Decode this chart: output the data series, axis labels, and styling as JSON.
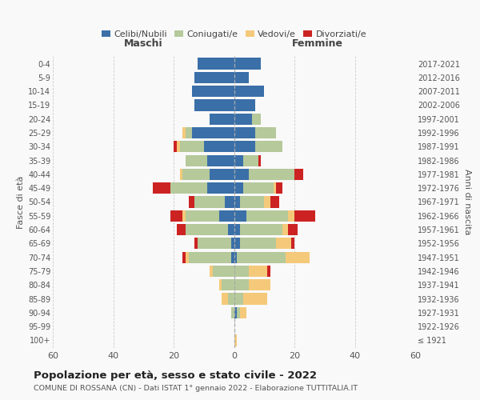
{
  "age_groups": [
    "100+",
    "95-99",
    "90-94",
    "85-89",
    "80-84",
    "75-79",
    "70-74",
    "65-69",
    "60-64",
    "55-59",
    "50-54",
    "45-49",
    "40-44",
    "35-39",
    "30-34",
    "25-29",
    "20-24",
    "15-19",
    "10-14",
    "5-9",
    "0-4"
  ],
  "birth_years": [
    "≤ 1921",
    "1922-1926",
    "1927-1931",
    "1932-1936",
    "1937-1941",
    "1942-1946",
    "1947-1951",
    "1952-1956",
    "1957-1961",
    "1962-1966",
    "1967-1971",
    "1972-1976",
    "1977-1981",
    "1982-1986",
    "1987-1991",
    "1992-1996",
    "1997-2001",
    "2002-2006",
    "2007-2011",
    "2012-2016",
    "2017-2021"
  ],
  "maschi": {
    "celibi": [
      0,
      0,
      0,
      0,
      0,
      0,
      1,
      1,
      2,
      5,
      3,
      9,
      8,
      9,
      10,
      14,
      8,
      13,
      14,
      13,
      12
    ],
    "coniugati": [
      0,
      0,
      1,
      2,
      4,
      7,
      14,
      11,
      14,
      11,
      10,
      12,
      9,
      7,
      8,
      2,
      0,
      0,
      0,
      0,
      0
    ],
    "vedovi": [
      0,
      0,
      0,
      2,
      1,
      1,
      1,
      0,
      0,
      1,
      0,
      0,
      1,
      0,
      1,
      1,
      0,
      0,
      0,
      0,
      0
    ],
    "divorziati": [
      0,
      0,
      0,
      0,
      0,
      0,
      1,
      1,
      3,
      4,
      2,
      6,
      0,
      0,
      1,
      0,
      0,
      0,
      0,
      0,
      0
    ]
  },
  "femmine": {
    "nubili": [
      0,
      0,
      1,
      0,
      0,
      0,
      1,
      2,
      2,
      4,
      2,
      3,
      5,
      3,
      7,
      7,
      6,
      7,
      10,
      5,
      9
    ],
    "coniugate": [
      0,
      0,
      1,
      3,
      5,
      5,
      16,
      12,
      14,
      14,
      8,
      10,
      15,
      5,
      9,
      7,
      3,
      0,
      0,
      0,
      0
    ],
    "vedove": [
      1,
      0,
      2,
      8,
      7,
      6,
      8,
      5,
      2,
      2,
      2,
      1,
      0,
      0,
      0,
      0,
      0,
      0,
      0,
      0,
      0
    ],
    "divorziate": [
      0,
      0,
      0,
      0,
      0,
      1,
      0,
      1,
      3,
      7,
      3,
      2,
      3,
      1,
      0,
      0,
      0,
      0,
      0,
      0,
      0
    ]
  },
  "colors": {
    "celibi": "#3a6fa8",
    "coniugati": "#b5c99a",
    "vedovi": "#f5c97a",
    "divorziati": "#cc2222"
  },
  "xlim": 60,
  "title": "Popolazione per età, sesso e stato civile - 2022",
  "subtitle": "COMUNE DI ROSSANA (CN) - Dati ISTAT 1° gennaio 2022 - Elaborazione TUTTITALIA.IT",
  "ylabel_left": "Fasce di età",
  "ylabel_right": "Anni di nascita",
  "xlabel_left": "Maschi",
  "xlabel_right": "Femmine",
  "bg_color": "#f9f9f9",
  "grid_color": "#cccccc"
}
